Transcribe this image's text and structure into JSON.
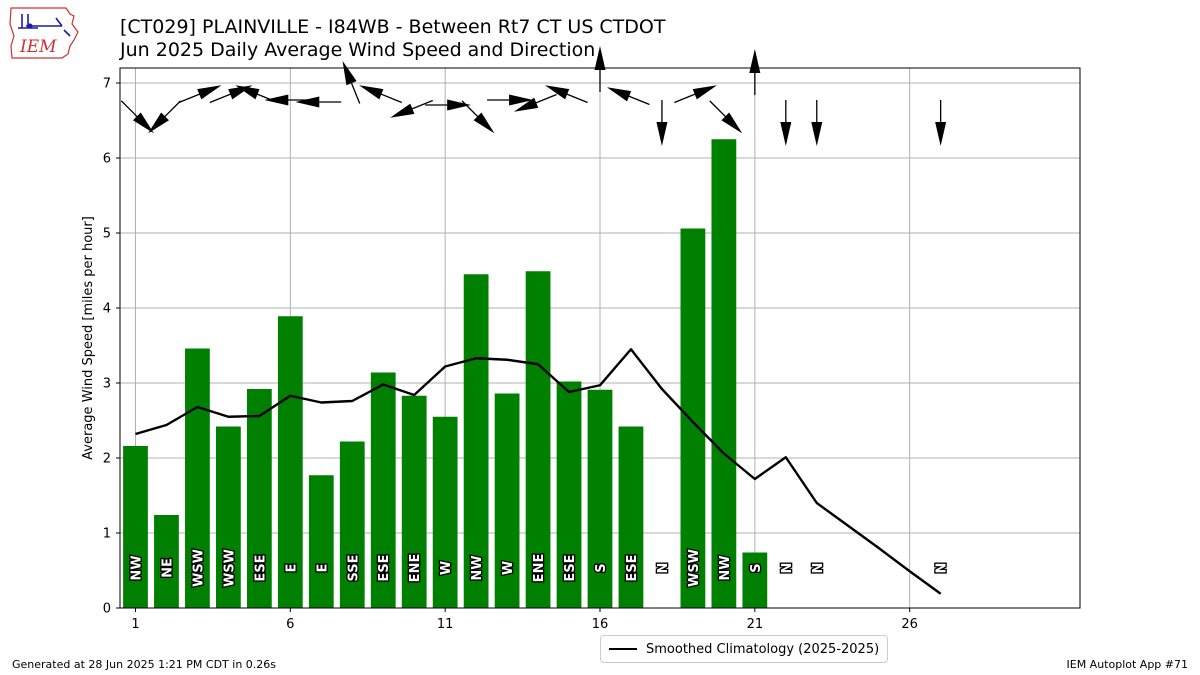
{
  "header": {
    "title_line1": "[CT029] PLAINVILLE - I84WB - Between Rt7 CT US  CTDOT",
    "title_line2": "Jun 2025 Daily Average Wind Speed and Direction",
    "logo_text": "IEM"
  },
  "footer": {
    "generated": "Generated at 28 Jun 2025 1:21 PM CDT in 0.26s",
    "app": "IEM Autoplot App #71"
  },
  "colors": {
    "bar": "#008000",
    "line": "#000000",
    "grid": "#b0b0b0",
    "logo": "#d03030"
  },
  "chart_data": {
    "type": "bar",
    "title": "[CT029] PLAINVILLE - I84WB - Between Rt7 CT US  CTDOT",
    "subtitle": "Jun 2025 Daily Average Wind Speed and Direction",
    "ylabel": "Average Wind Speed [miles per hour]",
    "xlabel": "",
    "xlim": [
      0.5,
      31.5
    ],
    "ylim": [
      0,
      7.2
    ],
    "x_ticks": [
      1,
      6,
      11,
      16,
      21,
      26
    ],
    "y_ticks": [
      0,
      1,
      2,
      3,
      4,
      5,
      6,
      7
    ],
    "grid": true,
    "legend_position": "below",
    "days": [
      1,
      2,
      3,
      4,
      5,
      6,
      7,
      8,
      9,
      10,
      11,
      12,
      13,
      14,
      15,
      16,
      17,
      18,
      19,
      20,
      21,
      22,
      23,
      27
    ],
    "values": [
      2.16,
      1.24,
      3.46,
      2.42,
      2.92,
      3.89,
      1.77,
      2.22,
      3.14,
      2.83,
      2.55,
      4.45,
      2.86,
      4.49,
      3.02,
      2.91,
      2.42,
      0.0,
      5.06,
      6.25,
      0.74,
      0.0,
      0.0,
      0.0
    ],
    "directions": [
      "NW",
      "NE",
      "WSW",
      "WSW",
      "ESE",
      "E",
      "E",
      "SSE",
      "ESE",
      "ENE",
      "W",
      "NW",
      "W",
      "ENE",
      "ESE",
      "S",
      "ESE",
      "N",
      "WSW",
      "NW",
      "S",
      "N",
      "N",
      "N"
    ],
    "arrow_degrees": [
      315,
      45,
      248,
      248,
      112,
      90,
      90,
      158,
      112,
      68,
      270,
      315,
      270,
      68,
      112,
      180,
      112,
      0,
      248,
      315,
      180,
      0,
      0,
      0
    ],
    "series": [
      {
        "name": "Smoothed Climatology (2025-2025)",
        "type": "line",
        "x": [
          1,
          2,
          3,
          4,
          5,
          6,
          7,
          8,
          9,
          10,
          11,
          12,
          13,
          14,
          15,
          16,
          17,
          18,
          19,
          20,
          21,
          22,
          23,
          24,
          25,
          26,
          27
        ],
        "values": [
          2.32,
          2.44,
          2.68,
          2.55,
          2.56,
          2.83,
          2.74,
          2.76,
          2.98,
          2.84,
          3.22,
          3.33,
          3.31,
          3.25,
          2.88,
          2.97,
          3.45,
          2.92,
          2.48,
          2.06,
          1.72,
          2.01,
          1.4,
          1.1,
          0.8,
          0.49,
          0.19
        ]
      }
    ]
  }
}
